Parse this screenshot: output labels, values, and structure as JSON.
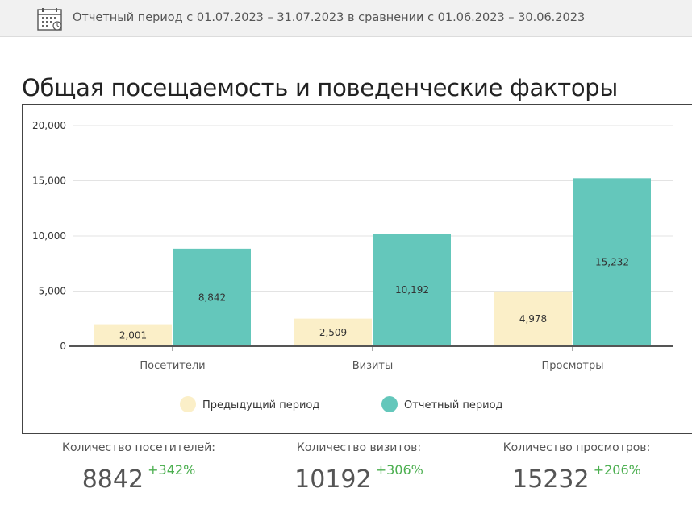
{
  "header": {
    "period_text": "Отчетный период с 01.07.2023 – 31.07.2023 в сравнении с 01.06.2023 – 30.06.2023",
    "icon": "calendar-clock-icon"
  },
  "section_title": "Общая посещаемость и поведенческие факторы",
  "chart_data": {
    "type": "bar",
    "categories": [
      "Посетители",
      "Визиты",
      "Просмотры"
    ],
    "series": [
      {
        "name": "Предыдущий период",
        "values": [
          2001,
          2509,
          4978
        ],
        "color": "#fbefc8"
      },
      {
        "name": "Отчетный период",
        "values": [
          8842,
          10192,
          15232
        ],
        "color": "#64c7bb"
      }
    ],
    "value_labels": [
      [
        "2,001",
        "2,509",
        "4,978"
      ],
      [
        "8,842",
        "10,192",
        "15,232"
      ]
    ],
    "ylim": [
      0,
      20000
    ],
    "yticks": [
      0,
      5000,
      10000,
      15000,
      20000
    ],
    "ytick_labels": [
      "0",
      "5,000",
      "10,000",
      "15,000",
      "20,000"
    ],
    "grid": true,
    "legend_position": "bottom"
  },
  "stats": [
    {
      "label": "Количество посетителей:",
      "value": "8842",
      "change": "+342%"
    },
    {
      "label": "Количество визитов:",
      "value": "10192",
      "change": "+306%"
    },
    {
      "label": "Количество просмотров:",
      "value": "15232",
      "change": "+206%"
    }
  ],
  "colors": {
    "accent_green": "#4caf50",
    "bar_prev": "#fbefc8",
    "bar_curr": "#64c7bb"
  }
}
